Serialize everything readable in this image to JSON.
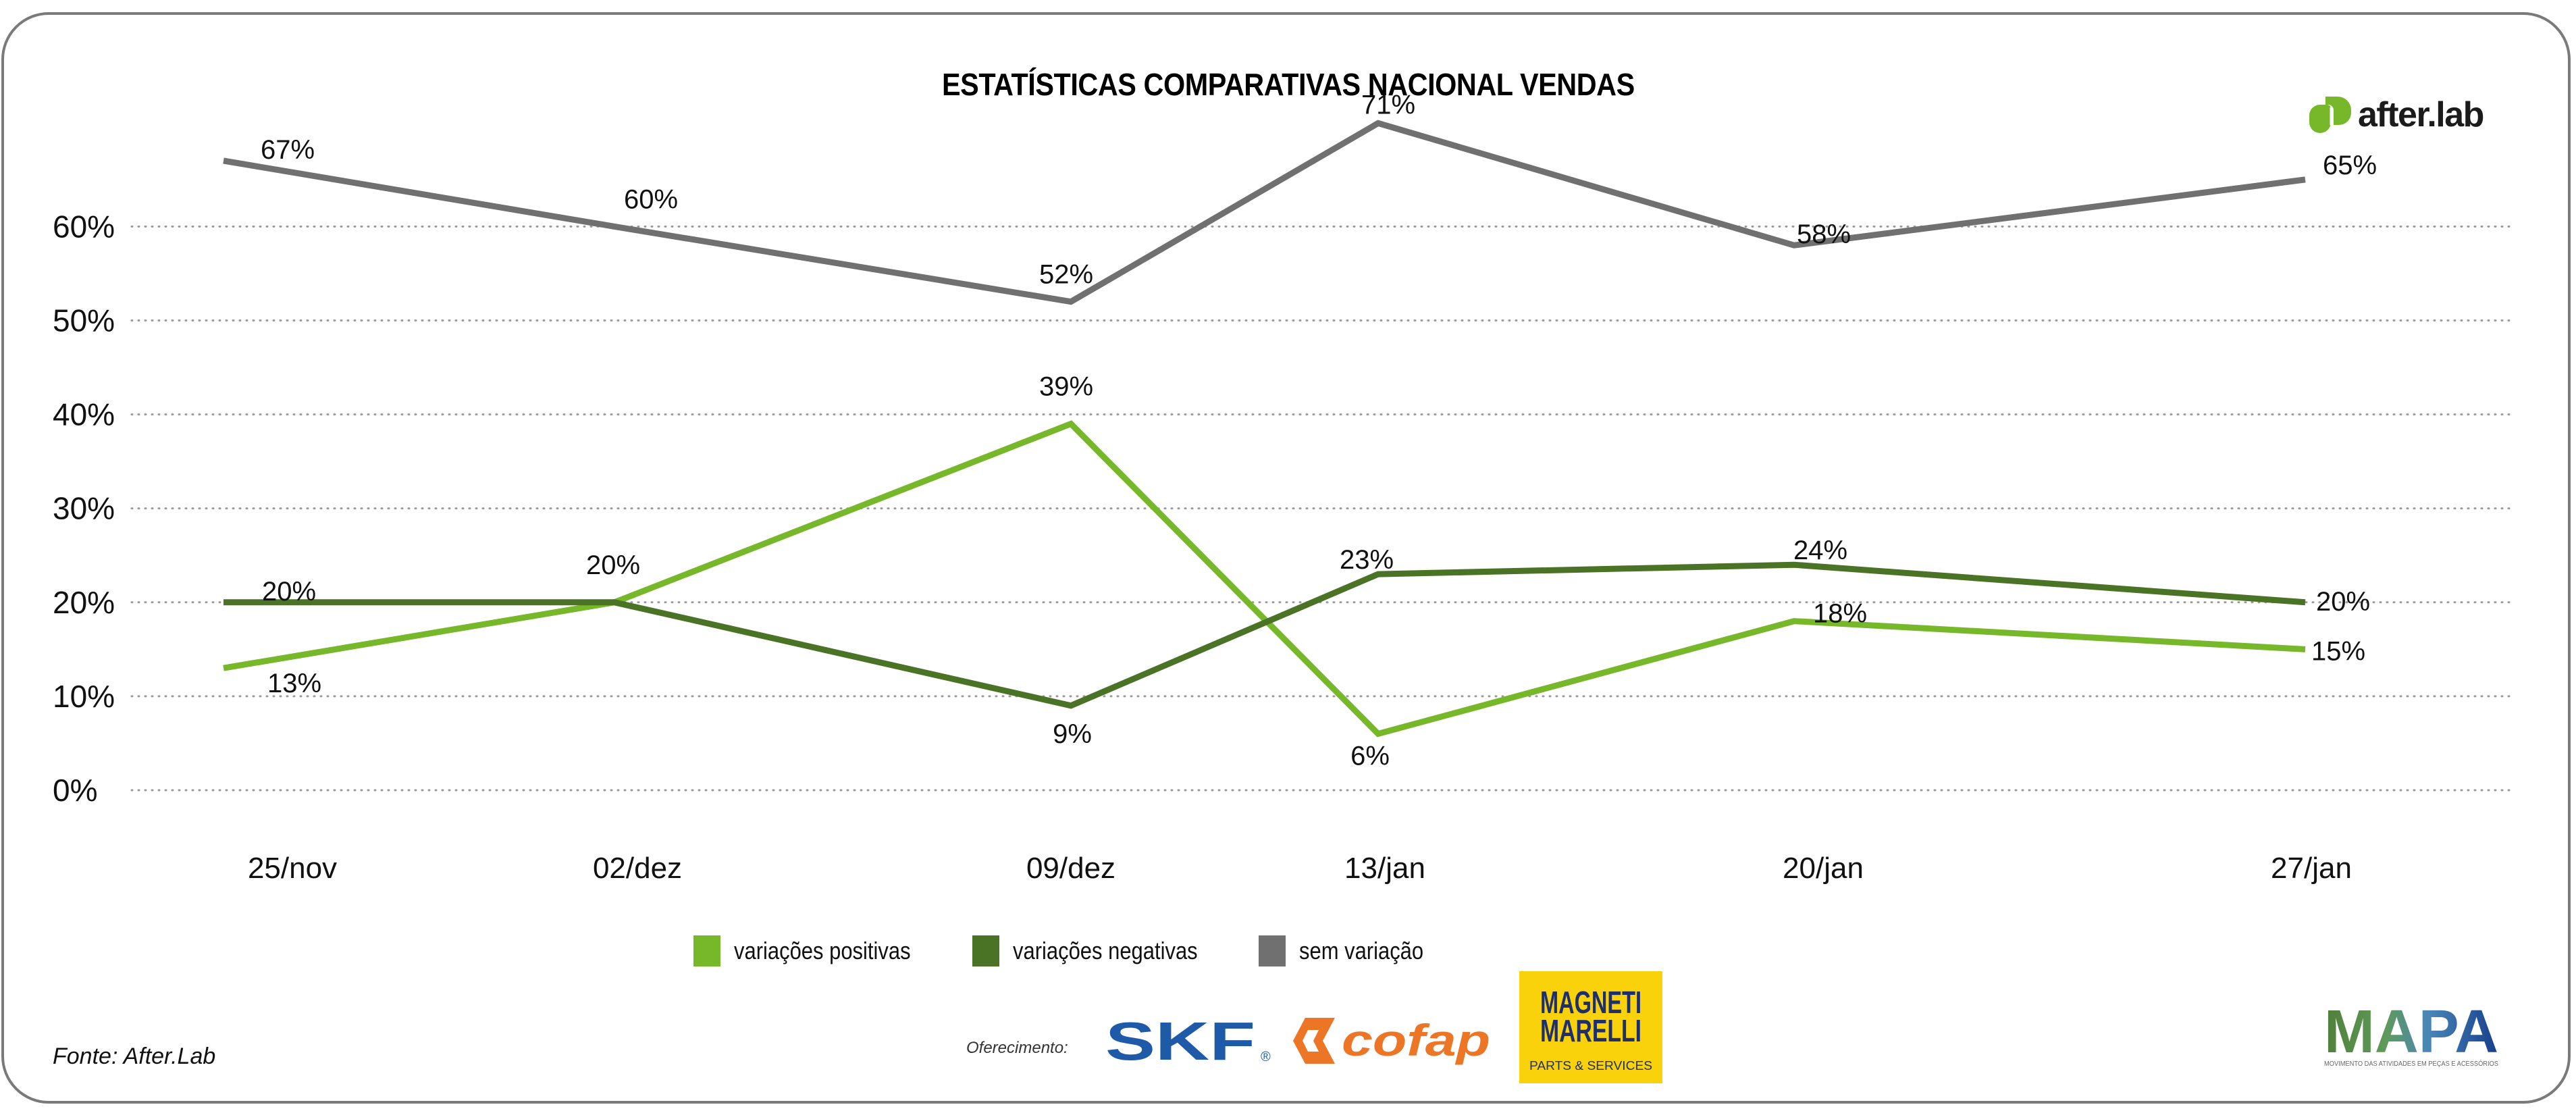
{
  "header": {
    "title": "ESTATÍSTICAS COMPARATIVAS NACIONAL VENDAS"
  },
  "brand": {
    "name": "after.lab",
    "icon": "afterlab-logo-icon",
    "color": "#76b82a"
  },
  "chart_data": {
    "type": "line",
    "title": "ESTATÍSTICAS COMPARATIVAS NACIONAL VENDAS",
    "xlabel": "",
    "ylabel": "",
    "categories": [
      "25/nov",
      "02/dez",
      "09/dez",
      "13/jan",
      "20/jan",
      "27/jan"
    ],
    "yticks": [
      0,
      10,
      20,
      30,
      40,
      50,
      60
    ],
    "ytick_labels": [
      "0%",
      "10%",
      "20%",
      "30%",
      "40%",
      "50%",
      "60%"
    ],
    "ylim": [
      0,
      70
    ],
    "unit": "%",
    "grid": true,
    "legend": "bottom-center",
    "series": [
      {
        "name": "variações positivas",
        "color": "#76b82a",
        "values": [
          13,
          20,
          39,
          6,
          18,
          15
        ],
        "labels": [
          "13%",
          "20%",
          "39%",
          "6%",
          "18%",
          "15%"
        ]
      },
      {
        "name": "variações negativas",
        "color": "#4a7326",
        "values": [
          20,
          20,
          9,
          23,
          24,
          20
        ],
        "labels": [
          "20%",
          null,
          "9%",
          "23%",
          "24%",
          "20%"
        ]
      },
      {
        "name": "sem variação",
        "color": "#707070",
        "values": [
          67,
          60,
          52,
          71,
          58,
          65
        ],
        "labels": [
          "67%",
          "60%",
          "52%",
          "71%",
          "58%",
          "65%"
        ]
      }
    ]
  },
  "footer": {
    "source": "Fonte: After.Lab",
    "sponsor_label": "Oferecimento:"
  },
  "sponsors": {
    "skf": {
      "name": "SKF",
      "reg": "®",
      "color": "#1f5aa8"
    },
    "cofap": {
      "name": "cofap",
      "color": "#ec7626"
    },
    "magneti": {
      "line1": "MAGNETI",
      "line2": "MARELLI",
      "sub": "PARTS & SERVICES",
      "bg": "#f9d20b",
      "color": "#1e2f6e"
    }
  },
  "mapa": {
    "title": "MAPA",
    "subtitle": "MOVIMENTO DAS ATIVIDADES EM PEÇAS E ACESSÓRIOS"
  }
}
